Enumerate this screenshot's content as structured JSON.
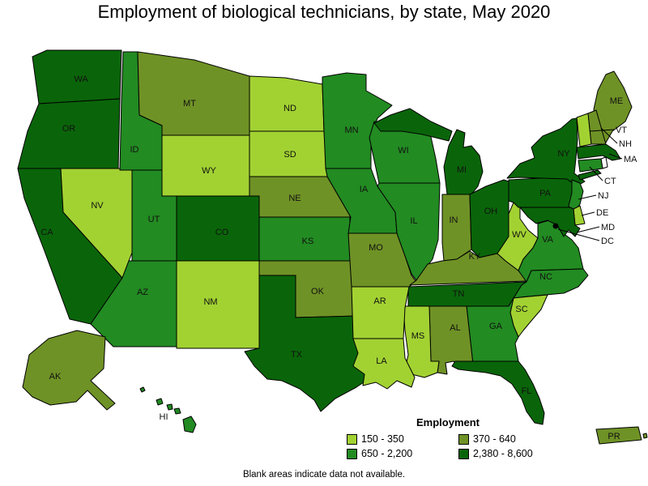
{
  "title": "Employment of biological technicians, by state, May 2020",
  "footnote": "Blank areas indicate data not available.",
  "legend": {
    "title": "Employment",
    "bins": [
      {
        "label": "150 - 350",
        "color": "#A2D232"
      },
      {
        "label": "370 - 640",
        "color": "#6F9226"
      },
      {
        "label": "650 - 2,200",
        "color": "#228B22"
      },
      {
        "label": "2,380 - 8,600",
        "color": "#0A650A"
      }
    ]
  },
  "chart_data": {
    "type": "choropleth",
    "title": "Employment of biological technicians, by state, May 2020",
    "region": "United States (states, DC, Puerto Rico)",
    "measure": "Employment of biological technicians",
    "period": "May 2020",
    "legend_title": "Employment",
    "bins": [
      {
        "range": "150 - 350",
        "color": "#A2D232",
        "states": [
          "NV",
          "WY",
          "NM",
          "ND",
          "SD",
          "WV",
          "AR",
          "MS",
          "LA",
          "SC",
          "VT",
          "DE"
        ]
      },
      {
        "range": "370 - 640",
        "color": "#6F9226",
        "states": [
          "MT",
          "NE",
          "OK",
          "MO",
          "IN",
          "KY",
          "AL",
          "ME",
          "NH",
          "AK",
          "PR"
        ]
      },
      {
        "range": "650 - 2,200",
        "color": "#228B22",
        "states": [
          "ID",
          "UT",
          "AZ",
          "KS",
          "MN",
          "IA",
          "WI",
          "IL",
          "GA",
          "NC",
          "VA",
          "CT",
          "NJ",
          "HI"
        ]
      },
      {
        "range": "2,380 - 8,600",
        "color": "#0A650A",
        "states": [
          "WA",
          "OR",
          "CA",
          "CO",
          "TX",
          "MI",
          "OH",
          "TN",
          "FL",
          "PA",
          "NY",
          "MA",
          "MD"
        ]
      }
    ],
    "no_data_note": "Blank areas indicate data not available.",
    "markers": [
      {
        "id": "DC",
        "type": "dot"
      }
    ]
  },
  "states": [
    {
      "id": "WA",
      "label": "WA",
      "bin": 3
    },
    {
      "id": "OR",
      "label": "OR",
      "bin": 3
    },
    {
      "id": "CA",
      "label": "CA",
      "bin": 3
    },
    {
      "id": "NV",
      "label": "NV",
      "bin": 0
    },
    {
      "id": "ID",
      "label": "ID",
      "bin": 2
    },
    {
      "id": "MT",
      "label": "MT",
      "bin": 1
    },
    {
      "id": "WY",
      "label": "WY",
      "bin": 0
    },
    {
      "id": "UT",
      "label": "UT",
      "bin": 2
    },
    {
      "id": "CO",
      "label": "CO",
      "bin": 3
    },
    {
      "id": "AZ",
      "label": "AZ",
      "bin": 2
    },
    {
      "id": "NM",
      "label": "NM",
      "bin": 0
    },
    {
      "id": "ND",
      "label": "ND",
      "bin": 0
    },
    {
      "id": "SD",
      "label": "SD",
      "bin": 0
    },
    {
      "id": "NE",
      "label": "NE",
      "bin": 1
    },
    {
      "id": "KS",
      "label": "KS",
      "bin": 2
    },
    {
      "id": "OK",
      "label": "OK",
      "bin": 1
    },
    {
      "id": "TX",
      "label": "TX",
      "bin": 3
    },
    {
      "id": "MN",
      "label": "MN",
      "bin": 2
    },
    {
      "id": "IA",
      "label": "IA",
      "bin": 2
    },
    {
      "id": "MO",
      "label": "MO",
      "bin": 1
    },
    {
      "id": "WI",
      "label": "WI",
      "bin": 2
    },
    {
      "id": "IL",
      "label": "IL",
      "bin": 2
    },
    {
      "id": "MI",
      "label": "MI",
      "bin": 3
    },
    {
      "id": "IN",
      "label": "IN",
      "bin": 1
    },
    {
      "id": "OH",
      "label": "OH",
      "bin": 3
    },
    {
      "id": "KY",
      "label": "KY",
      "bin": 1
    },
    {
      "id": "TN",
      "label": "TN",
      "bin": 3
    },
    {
      "id": "WV",
      "label": "WV",
      "bin": 0
    },
    {
      "id": "VA",
      "label": "VA",
      "bin": 2
    },
    {
      "id": "NC",
      "label": "NC",
      "bin": 2
    },
    {
      "id": "SC",
      "label": "SC",
      "bin": 0
    },
    {
      "id": "GA",
      "label": "GA",
      "bin": 2
    },
    {
      "id": "AL",
      "label": "AL",
      "bin": 1
    },
    {
      "id": "MS",
      "label": "MS",
      "bin": 0
    },
    {
      "id": "AR",
      "label": "AR",
      "bin": 0
    },
    {
      "id": "LA",
      "label": "LA",
      "bin": 0
    },
    {
      "id": "FL",
      "label": "FL",
      "bin": 3
    },
    {
      "id": "PA",
      "label": "PA",
      "bin": 3
    },
    {
      "id": "NY",
      "label": "NY",
      "bin": 3
    },
    {
      "id": "ME",
      "label": "ME",
      "bin": 1
    },
    {
      "id": "VT",
      "label": "VT",
      "bin": 0,
      "callout": true
    },
    {
      "id": "NH",
      "label": "NH",
      "bin": 1,
      "callout": true
    },
    {
      "id": "MA",
      "label": "MA",
      "bin": 3,
      "callout": true
    },
    {
      "id": "RI",
      "label": "",
      "bin": null
    },
    {
      "id": "CT",
      "label": "CT",
      "bin": 2,
      "callout": true
    },
    {
      "id": "NJ",
      "label": "NJ",
      "bin": 2,
      "callout": true
    },
    {
      "id": "DE",
      "label": "DE",
      "bin": 0,
      "callout": true
    },
    {
      "id": "MD",
      "label": "MD",
      "bin": 3,
      "callout": true
    },
    {
      "id": "DC",
      "label": "DC",
      "bin": null,
      "callout": true,
      "marker": "dot"
    },
    {
      "id": "AK",
      "label": "AK",
      "bin": 1
    },
    {
      "id": "HI",
      "label": "HI",
      "bin": 2
    },
    {
      "id": "PR",
      "label": "PR",
      "bin": 1
    }
  ]
}
